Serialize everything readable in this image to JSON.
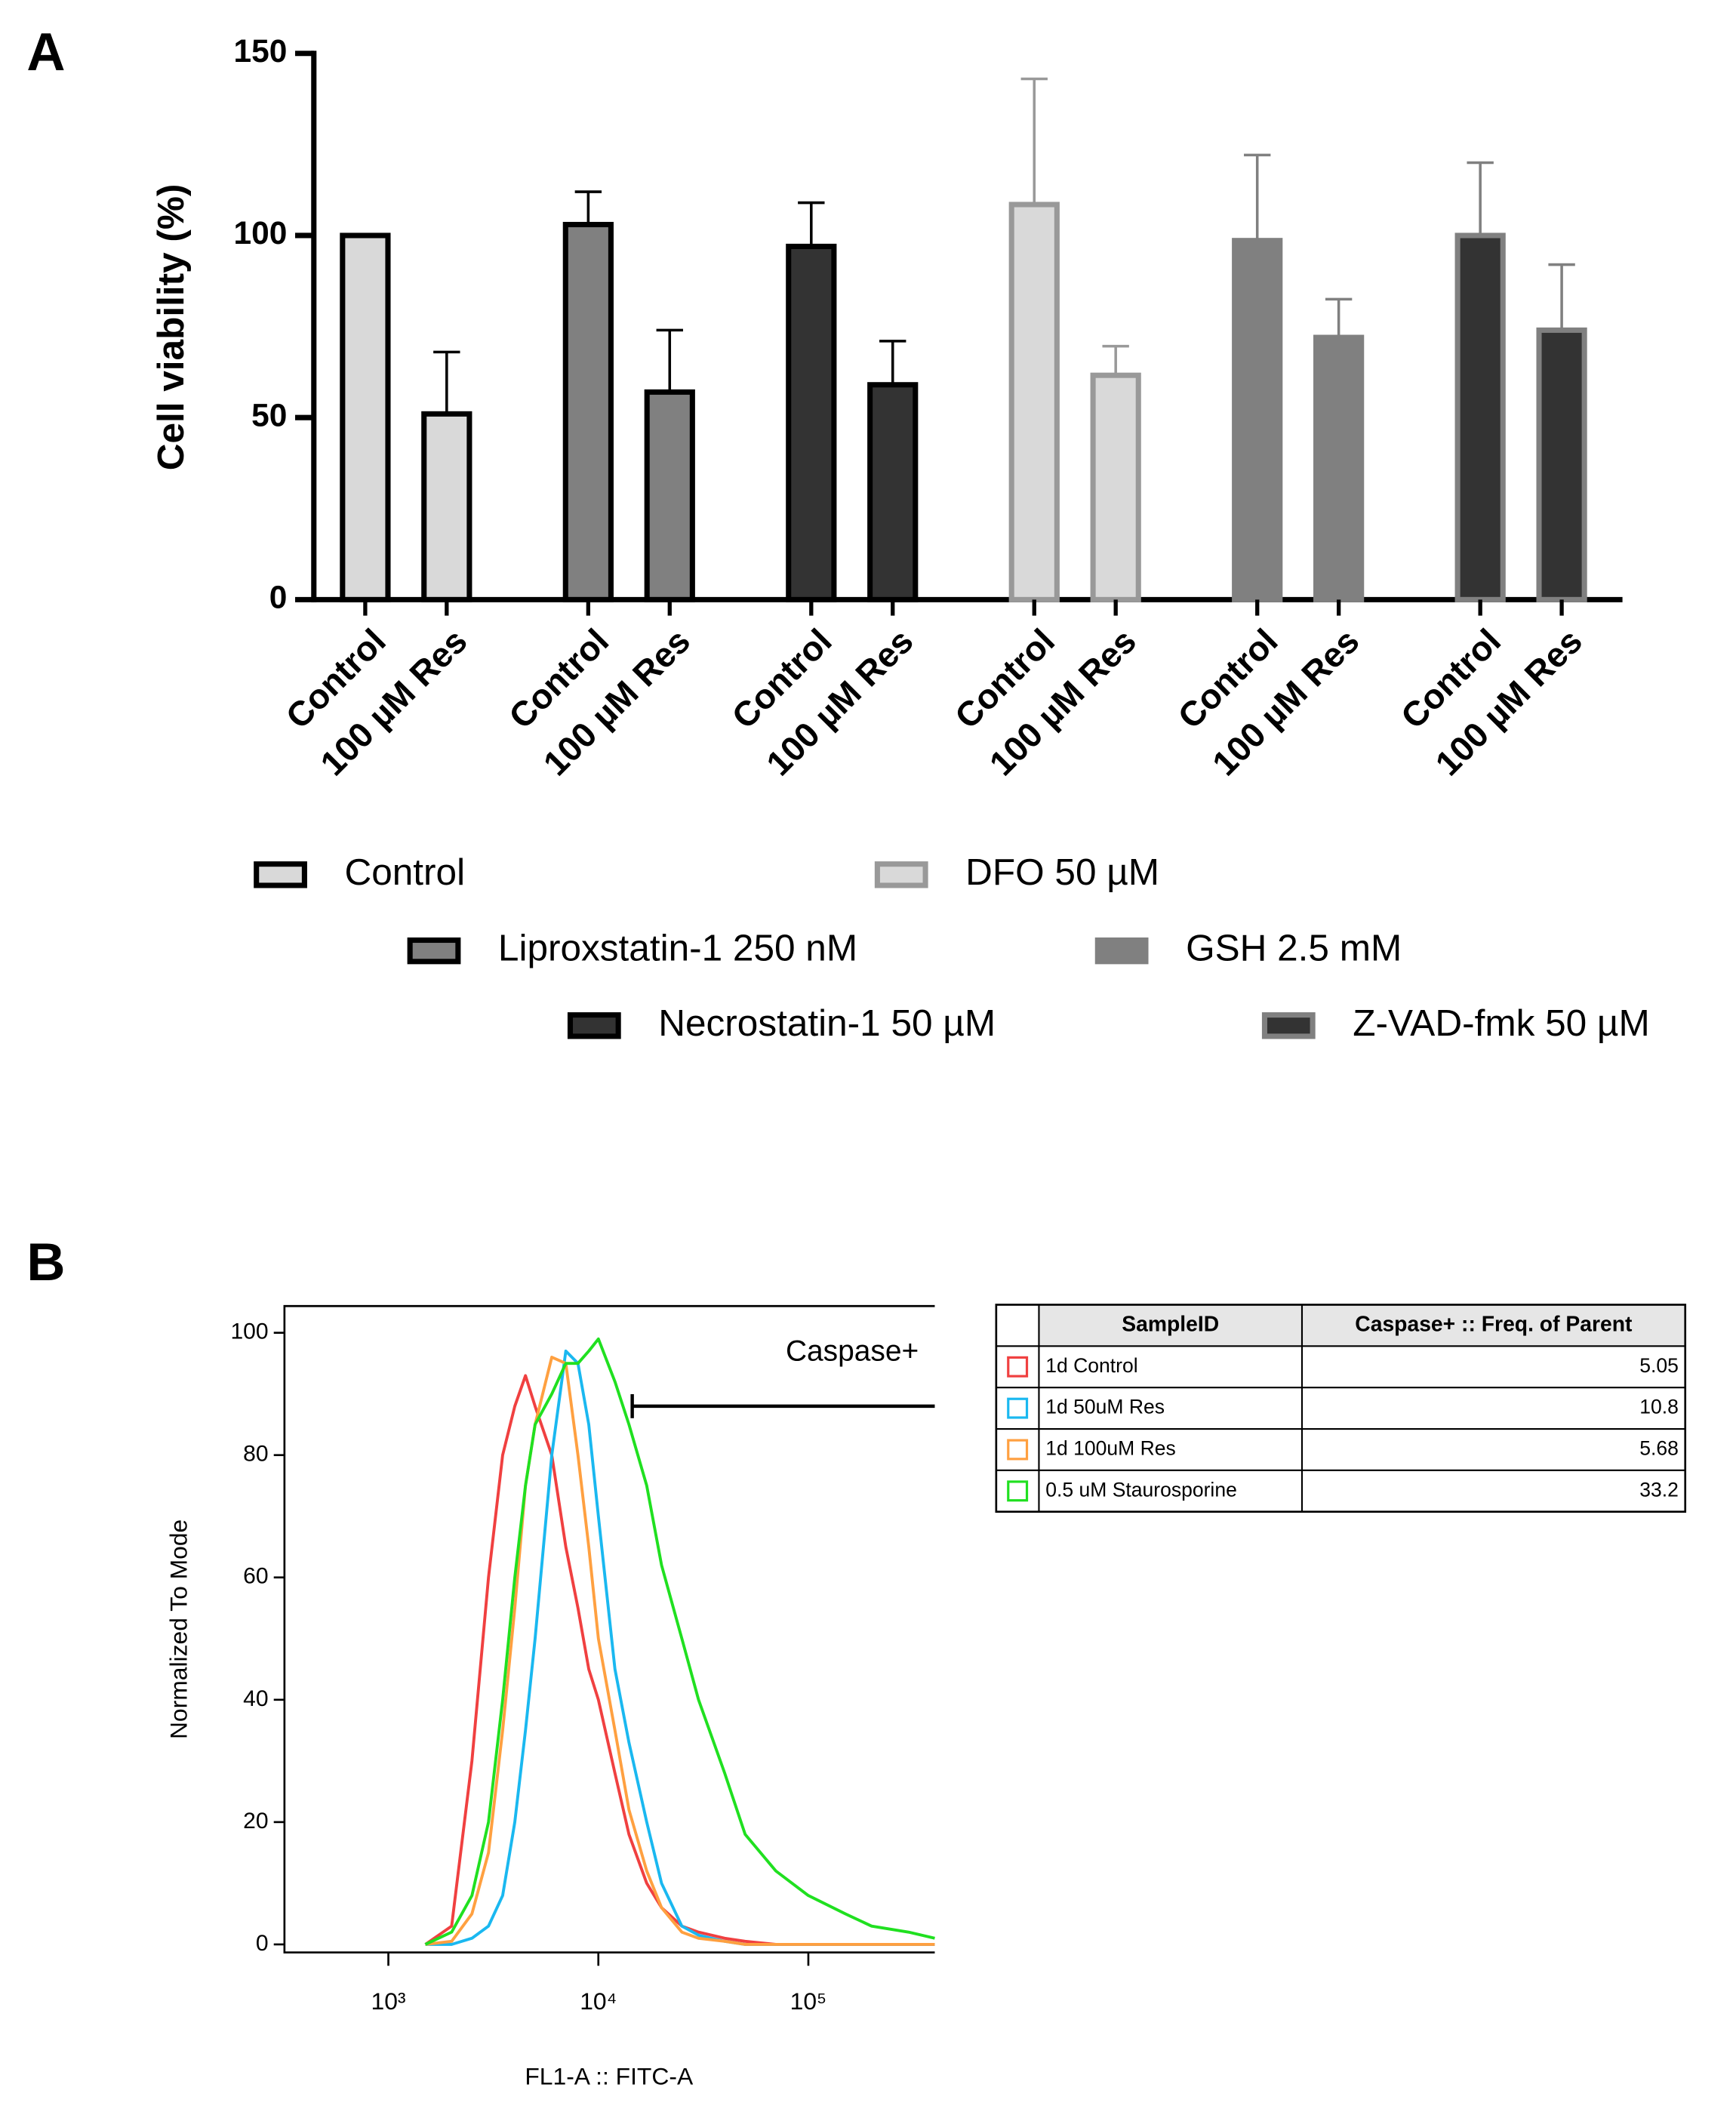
{
  "chart_data": [
    {
      "type": "bar",
      "panel_label": "A",
      "ylabel": "Cell viability (%)",
      "categories": [
        "Control",
        "100 µM Res"
      ],
      "series": [
        {
          "name": "Control",
          "color": "#d9d9d9",
          "edge": "#000000",
          "values": [
            100,
            51
          ],
          "errors": [
            0,
            17
          ]
        },
        {
          "name": "Liproxstatin-1 250 nM",
          "color": "#808080",
          "edge": "#000000",
          "values": [
            103,
            57
          ],
          "errors": [
            9,
            17
          ]
        },
        {
          "name": "Necrostatin-1 50 µM",
          "color": "#333333",
          "edge": "#000000",
          "values": [
            97,
            59
          ],
          "errors": [
            12,
            12
          ]
        },
        {
          "name": "DFO 50 µM",
          "color": "#d9d9d9",
          "edge": "#999999",
          "values": [
            108.5,
            61.6
          ],
          "errors": [
            34.5,
            8
          ]
        },
        {
          "name": "GSH 2.5 mM",
          "color": "#808080",
          "edge": "#808080",
          "values": [
            98.6,
            72
          ],
          "errors": [
            23.5,
            10.5
          ]
        },
        {
          "name": "Z-VAD-fmk 50 µM",
          "color": "#333333",
          "edge": "#808080",
          "values": [
            100,
            74
          ],
          "errors": [
            20,
            18
          ]
        }
      ],
      "ylim": [
        0,
        150
      ],
      "yticks": [
        0,
        50,
        100,
        150
      ]
    },
    {
      "type": "line",
      "panel_label": "B",
      "ylabel": "Normalized To Mode",
      "xlabel": "FL1-A :: FITC-A",
      "xscale": "log",
      "xlim": [
        320,
        400000
      ],
      "xticks": [
        {
          "value": 1000,
          "label": "10³"
        },
        {
          "value": 10000,
          "label": "10⁴"
        },
        {
          "value": 100000,
          "label": "10⁵"
        }
      ],
      "ylim": [
        0,
        100
      ],
      "yticks": [
        0,
        20,
        40,
        60,
        80,
        100
      ],
      "x": [
        1500,
        2000,
        2500,
        3000,
        3500,
        4000,
        4500,
        5000,
        6000,
        7000,
        8000,
        9000,
        10000,
        12000,
        14000,
        17000,
        20000,
        25000,
        30000,
        40000,
        50000,
        70000,
        100000,
        150000,
        200000,
        300000,
        400000
      ],
      "series": [
        {
          "name": "1d Control",
          "color": "#f04040",
          "values": [
            0,
            3,
            30,
            60,
            80,
            88,
            93,
            88,
            80,
            65,
            55,
            45,
            40,
            28,
            18,
            10,
            6,
            3,
            2,
            1,
            0.5,
            0,
            0,
            0,
            0,
            0,
            0
          ]
        },
        {
          "name": "1d 50uM Res",
          "color": "#1ab8f0",
          "values": [
            0,
            0,
            1,
            3,
            8,
            20,
            35,
            50,
            80,
            97,
            95,
            85,
            70,
            45,
            33,
            20,
            10,
            3,
            1.5,
            0.5,
            0,
            0,
            0,
            0,
            0,
            0,
            0
          ]
        },
        {
          "name": "1d 100uM Res",
          "color": "#ffa040",
          "values": [
            0,
            0.5,
            5,
            15,
            35,
            55,
            75,
            85,
            96,
            95,
            80,
            65,
            50,
            35,
            22,
            12,
            6,
            2,
            1,
            0.5,
            0,
            0,
            0,
            0,
            0,
            0,
            0
          ]
        },
        {
          "name": "0.5 uM Staurosporine",
          "color": "#20e020",
          "values": [
            0,
            2,
            8,
            20,
            40,
            60,
            75,
            85,
            90,
            95,
            95,
            97,
            99,
            92,
            85,
            75,
            62,
            50,
            40,
            28,
            18,
            12,
            8,
            5,
            3,
            2,
            1
          ]
        }
      ],
      "gate": {
        "label": "Caspase+",
        "x": [
          14500,
          400000
        ],
        "y": 88
      },
      "table": {
        "header": [
          "SampleID",
          "Caspase+ :: Freq. of Parent"
        ],
        "values": [
          5.05,
          10.8,
          5.68,
          33.2
        ]
      }
    }
  ]
}
